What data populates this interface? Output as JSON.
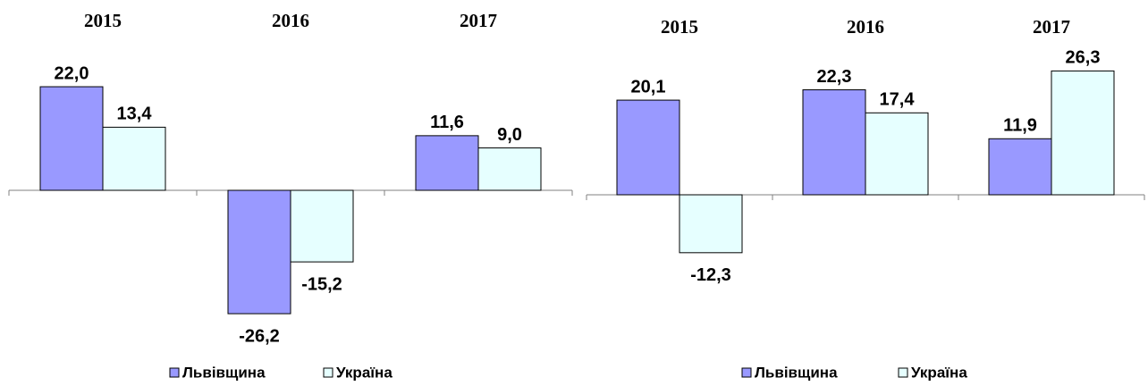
{
  "chart_data": [
    {
      "type": "bar",
      "categories": [
        "2015",
        "2016",
        "2017"
      ],
      "series": [
        {
          "name": "Львівщина",
          "color": "#9999ff",
          "values": [
            22.0,
            -26.2,
            11.6
          ],
          "value_labels": [
            "22,0",
            "-26,2",
            "11,6"
          ]
        },
        {
          "name": "Україна",
          "color": "#e6ffff",
          "values": [
            13.4,
            -15.2,
            9.0
          ],
          "value_labels": [
            "13,4",
            "-15,2",
            "9,0"
          ]
        }
      ]
    },
    {
      "type": "bar",
      "categories": [
        "2015",
        "2016",
        "2017"
      ],
      "series": [
        {
          "name": "Львівщина",
          "color": "#9999ff",
          "values": [
            20.1,
            22.3,
            11.9
          ],
          "value_labels": [
            "20,1",
            "22,3",
            "11,9"
          ]
        },
        {
          "name": "Україна",
          "color": "#e6ffff",
          "values": [
            -12.3,
            17.4,
            26.3
          ],
          "value_labels": [
            "-12,3",
            "17,4",
            "26,3"
          ]
        }
      ]
    }
  ]
}
